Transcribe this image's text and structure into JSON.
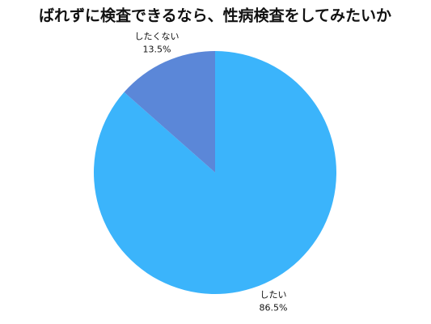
{
  "chart_data": {
    "type": "pie",
    "title": "ばれずに検査できるなら、性病検査をしてみたいか",
    "categories": [
      "したい",
      "したくない"
    ],
    "values": [
      86.5,
      13.5
    ],
    "value_labels": [
      "86.5%",
      "13.5%"
    ],
    "colors": [
      "#3bb4fb",
      "#5b87d8"
    ]
  }
}
